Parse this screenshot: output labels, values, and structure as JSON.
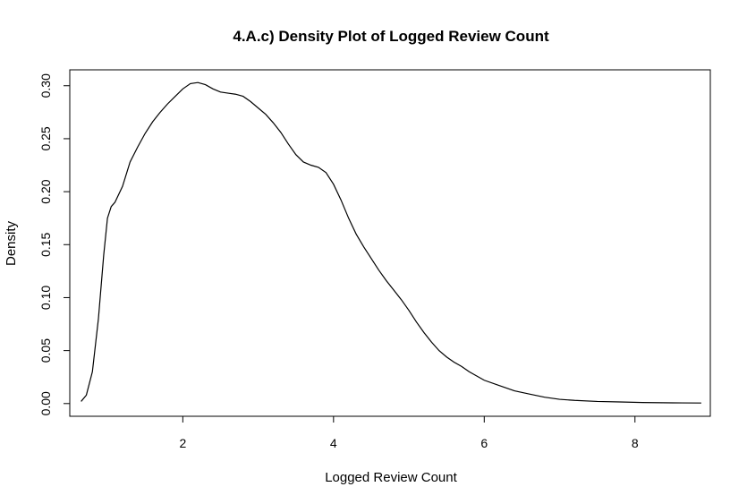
{
  "chart_data": {
    "type": "line",
    "title": "4.A.c) Density Plot of Logged Review Count",
    "xlabel": "Logged Review Count",
    "ylabel": "Density",
    "xlim": [
      0.5,
      9.0
    ],
    "ylim": [
      -0.012,
      0.315
    ],
    "x_ticks": [
      2,
      4,
      6,
      8
    ],
    "x_tick_labels": [
      "2",
      "4",
      "6",
      "8"
    ],
    "y_ticks": [
      0.0,
      0.05,
      0.1,
      0.15,
      0.2,
      0.25,
      0.3
    ],
    "y_tick_labels": [
      "0.00",
      "0.05",
      "0.10",
      "0.15",
      "0.20",
      "0.25",
      "0.30"
    ],
    "grid": false,
    "legend": "none",
    "series": [
      {
        "color": "#000000",
        "x": [
          0.65,
          0.72,
          0.8,
          0.88,
          0.95,
          1.0,
          1.05,
          1.1,
          1.2,
          1.3,
          1.4,
          1.5,
          1.6,
          1.7,
          1.8,
          1.9,
          2.0,
          2.1,
          2.2,
          2.3,
          2.4,
          2.5,
          2.6,
          2.7,
          2.8,
          2.9,
          3.0,
          3.1,
          3.2,
          3.3,
          3.4,
          3.5,
          3.6,
          3.7,
          3.8,
          3.9,
          4.0,
          4.1,
          4.2,
          4.3,
          4.4,
          4.5,
          4.6,
          4.7,
          4.8,
          4.9,
          5.0,
          5.1,
          5.2,
          5.3,
          5.4,
          5.5,
          5.6,
          5.7,
          5.8,
          5.9,
          6.0,
          6.2,
          6.4,
          6.6,
          6.8,
          7.0,
          7.2,
          7.5,
          7.8,
          8.1,
          8.5,
          8.88
        ],
        "y": [
          0.002,
          0.008,
          0.03,
          0.08,
          0.14,
          0.175,
          0.186,
          0.19,
          0.205,
          0.228,
          0.242,
          0.255,
          0.266,
          0.275,
          0.283,
          0.29,
          0.297,
          0.302,
          0.303,
          0.301,
          0.297,
          0.294,
          0.293,
          0.292,
          0.29,
          0.285,
          0.279,
          0.273,
          0.265,
          0.256,
          0.245,
          0.235,
          0.228,
          0.225,
          0.223,
          0.218,
          0.207,
          0.192,
          0.175,
          0.16,
          0.148,
          0.137,
          0.126,
          0.116,
          0.107,
          0.098,
          0.088,
          0.077,
          0.067,
          0.058,
          0.05,
          0.044,
          0.039,
          0.035,
          0.03,
          0.026,
          0.022,
          0.017,
          0.012,
          0.009,
          0.006,
          0.004,
          0.003,
          0.002,
          0.0015,
          0.001,
          0.0007,
          0.0005
        ]
      }
    ]
  }
}
